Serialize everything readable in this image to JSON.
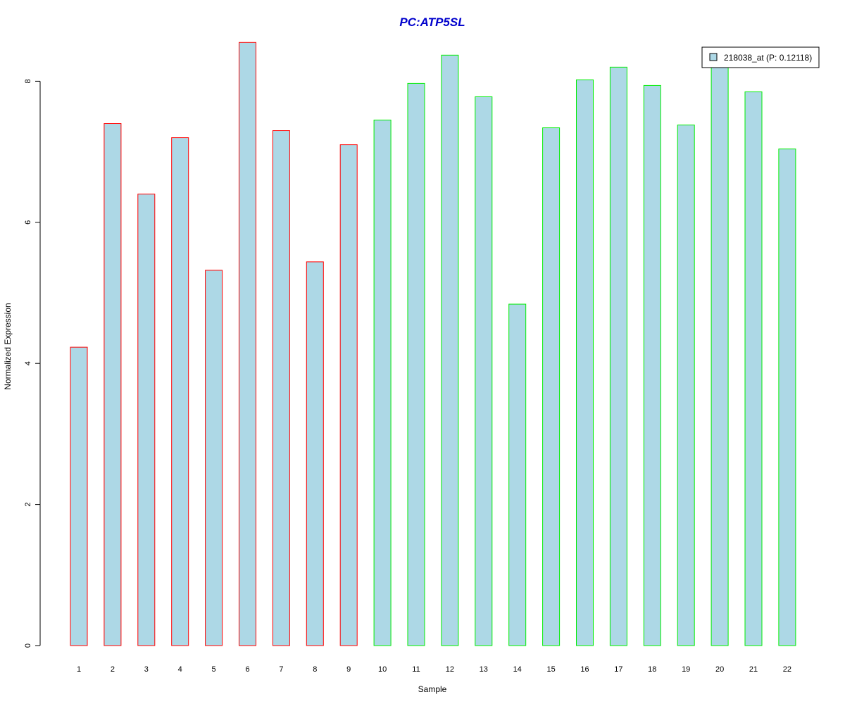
{
  "chart_data": {
    "type": "bar",
    "title": "PC:ATP5SL",
    "xlabel": "Sample",
    "ylabel": "Normalized Expression",
    "categories": [
      "1",
      "2",
      "3",
      "4",
      "5",
      "6",
      "7",
      "8",
      "9",
      "10",
      "11",
      "12",
      "13",
      "14",
      "15",
      "16",
      "17",
      "18",
      "19",
      "20",
      "21",
      "22"
    ],
    "series": [
      {
        "name": "218038_at (P: 0.12118)",
        "values": [
          4.23,
          7.4,
          6.4,
          7.2,
          5.32,
          8.55,
          7.3,
          5.44,
          7.1,
          7.45,
          7.97,
          8.37,
          7.78,
          4.84,
          7.34,
          8.02,
          8.2,
          7.94,
          7.38,
          8.23,
          7.85,
          7.04
        ]
      }
    ],
    "groups": [
      0,
      0,
      0,
      0,
      0,
      0,
      0,
      0,
      0,
      1,
      1,
      1,
      1,
      1,
      1,
      1,
      1,
      1,
      1,
      1,
      1,
      1
    ],
    "yticks": [
      0,
      2,
      4,
      6,
      8
    ],
    "ylim": [
      0,
      8.8
    ],
    "grid": false,
    "legend_position": "top-right",
    "colors": {
      "bar_fill": "#add8e6",
      "group_borders": [
        "#ff0000",
        "#00ee00"
      ],
      "title": "#0000cc",
      "axis": "#000000"
    }
  }
}
